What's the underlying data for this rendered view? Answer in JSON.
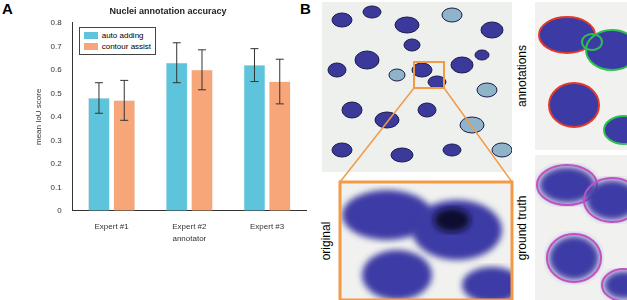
{
  "chart_data": {
    "type": "bar",
    "title": "Nuclei annotation accuracy",
    "x_label": "annotator",
    "y_label": "mean IoU score",
    "categories": [
      "Expert #1",
      "Expert #2",
      "Expert #3"
    ],
    "series": [
      {
        "name": "auto adding",
        "color": "#5ec4db",
        "values": [
          0.48,
          0.63,
          0.62
        ],
        "errors": [
          0.065,
          0.085,
          0.07
        ]
      },
      {
        "name": "contour assist",
        "color": "#f7a679",
        "values": [
          0.47,
          0.6,
          0.55
        ],
        "errors": [
          0.085,
          0.085,
          0.095
        ]
      }
    ],
    "ylim": [
      0,
      0.8
    ],
    "yticks": [
      0,
      0.1,
      0.2,
      0.3,
      0.4,
      0.5,
      0.6,
      0.7,
      0.8
    ],
    "grid": false,
    "legend": "upper left"
  },
  "figure": {
    "panel_labels": [
      "A",
      "B"
    ]
  },
  "image_panel": {
    "labels": [
      "original",
      "annotations",
      "ground truth"
    ]
  }
}
